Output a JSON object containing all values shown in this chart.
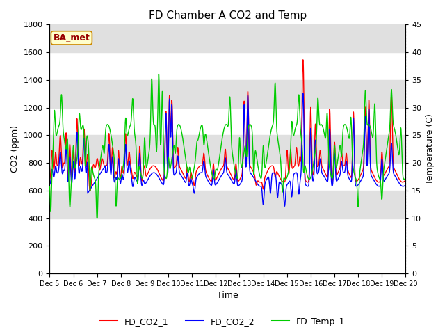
{
  "title": "FD Chamber A CO2 and Temp",
  "xlabel": "Time",
  "ylabel_left": "CO2 (ppm)",
  "ylabel_right": "Temperature (C)",
  "ylim_left": [
    0,
    1800
  ],
  "ylim_right": [
    0,
    45
  ],
  "yticks_left": [
    0,
    200,
    400,
    600,
    800,
    1000,
    1200,
    1400,
    1600,
    1800
  ],
  "yticks_right": [
    0,
    5,
    10,
    15,
    20,
    25,
    30,
    35,
    40,
    45
  ],
  "xtick_labels": [
    "Dec 5",
    "Dec 6",
    "Dec 7",
    "Dec 8",
    "Dec 9",
    "Dec 10",
    "Dec 11",
    "Dec 12",
    "Dec 13",
    "Dec 14",
    "Dec 15",
    "Dec 16",
    "Dec 17",
    "Dec 18",
    "Dec 19",
    "Dec 20"
  ],
  "color_co2_1": "#ff0000",
  "color_co2_2": "#0000ff",
  "color_temp": "#00cc00",
  "legend_label_1": "FD_CO2_1",
  "legend_label_2": "FD_CO2_2",
  "legend_label_3": "FD_Temp_1",
  "annotation_text": "BA_met",
  "annotation_bg": "#ffffcc",
  "annotation_border": "#cc8800",
  "bg_band_color": "#e0e0e0",
  "linewidth": 1.0,
  "title_fontsize": 11,
  "axis_fontsize": 9,
  "tick_fontsize": 8,
  "legend_fontsize": 9,
  "figsize": [
    6.4,
    4.8
  ],
  "dpi": 100
}
